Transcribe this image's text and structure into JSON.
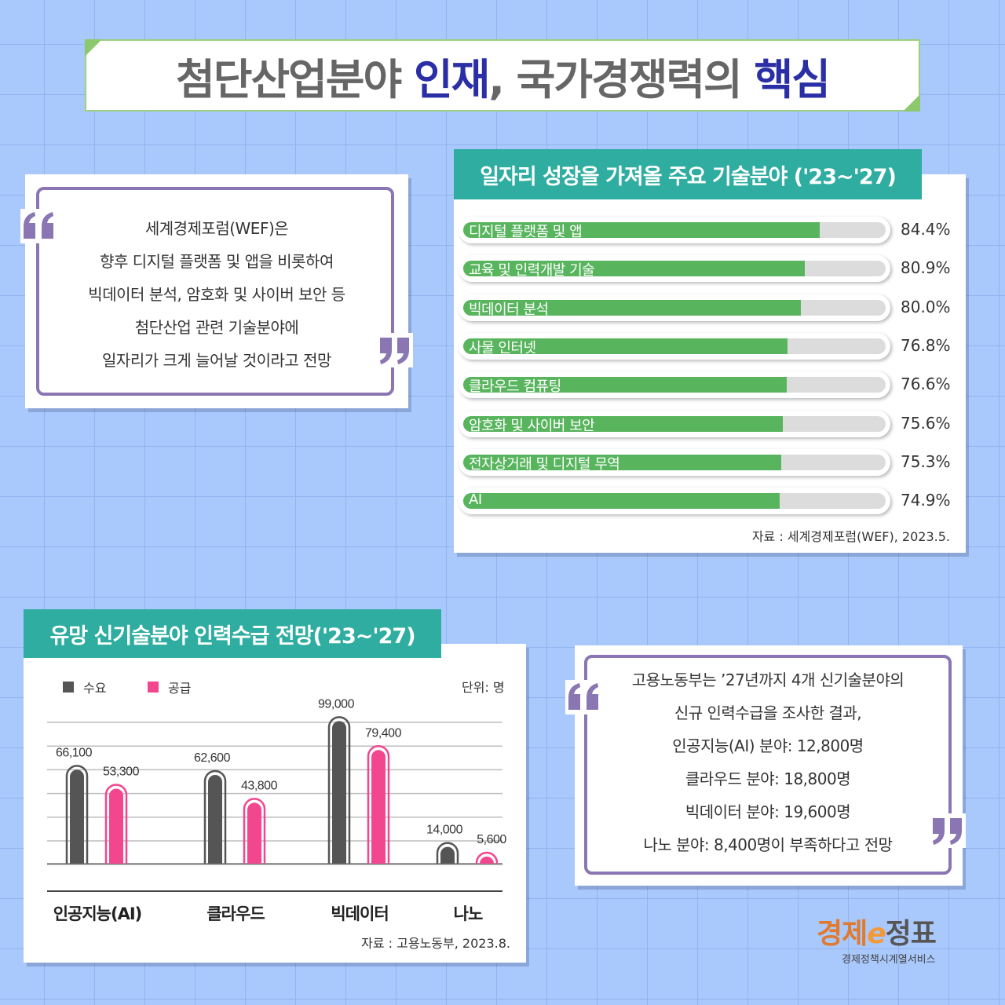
{
  "title": {
    "part1": "첨단산업분야 ",
    "highlight1": "인재",
    "part2": ", 국가경쟁력의 ",
    "highlight2": "핵심"
  },
  "quote1": {
    "lines": [
      "세계경제포럼(WEF)은",
      "향후 디지털 플랫폼 및 앱을 비롯하여",
      "빅데이터 분석, 암호화 및 사이버 보안 등",
      "첨단산업 관련 기술분야에",
      "일자리가 크게 늘어날 것이라고 전망"
    ]
  },
  "quote2": {
    "lines": [
      "고용노동부는 ’27년까지 4개 신기술분야의",
      "신규 인력수급을 조사한 결과,",
      "인공지능(AI) 분야: 12,800명",
      "클라우드 분야: 18,800명",
      "빅데이터 분야: 19,600명",
      "나노 분야: 8,400명이 부족하다고 전망"
    ]
  },
  "chart_data": [
    {
      "type": "bar",
      "orientation": "horizontal",
      "title": "일자리 성장을 가져올 주요 기술분야 ('23~'27)",
      "categories": [
        "디지털 플랫폼 및 앱",
        "교육 및 인력개발 기술",
        "빅데이터 분석",
        "사물 인터넷",
        "클라우드 컴퓨팅",
        "암호화 및 사이버 보안",
        "전자상거래 및 디지털 무역",
        "AI"
      ],
      "values": [
        84.4,
        80.9,
        80.0,
        76.8,
        76.6,
        75.6,
        75.3,
        74.9
      ],
      "value_labels": [
        "84.4%",
        "80.9%",
        "80.0%",
        "76.8%",
        "76.6%",
        "75.6%",
        "75.3%",
        "74.9%"
      ],
      "xlim": [
        0,
        100
      ],
      "bar_color": "#58b55e",
      "source": "자료 : 세계경제포럼(WEF), 2023.5."
    },
    {
      "type": "bar",
      "orientation": "vertical",
      "title": "유망 신기술분야 인력수급 전망('23~'27)",
      "categories": [
        "인공지능(AI)",
        "클라우드",
        "빅데이터",
        "나노"
      ],
      "series": [
        {
          "name": "수요",
          "values": [
            66100,
            62600,
            99000,
            14000
          ],
          "labels": [
            "66,100",
            "62,600",
            "99,000",
            "14,000"
          ],
          "color": "#555555"
        },
        {
          "name": "공급",
          "values": [
            53300,
            43800,
            79400,
            5600
          ],
          "labels": [
            "53,300",
            "43,800",
            "79,400",
            "5,600"
          ],
          "color": "#f2468f"
        }
      ],
      "unit": "단위: 명",
      "ylim": [
        0,
        105000
      ],
      "grid": true,
      "legend": "top-left",
      "source": "자료 : 고용노동부, 2023.8."
    }
  ],
  "logo": {
    "main_a": "경제",
    "main_e": "e",
    "main_b": "정표",
    "sub": "경제정책시계열서비스"
  },
  "colors": {
    "background": "#a9c8fb",
    "teal": "#2eada0",
    "purple": "#8a76b2",
    "navy": "#2b2fa6",
    "green": "#58b55e",
    "pink": "#f2468f",
    "dark": "#555555"
  }
}
